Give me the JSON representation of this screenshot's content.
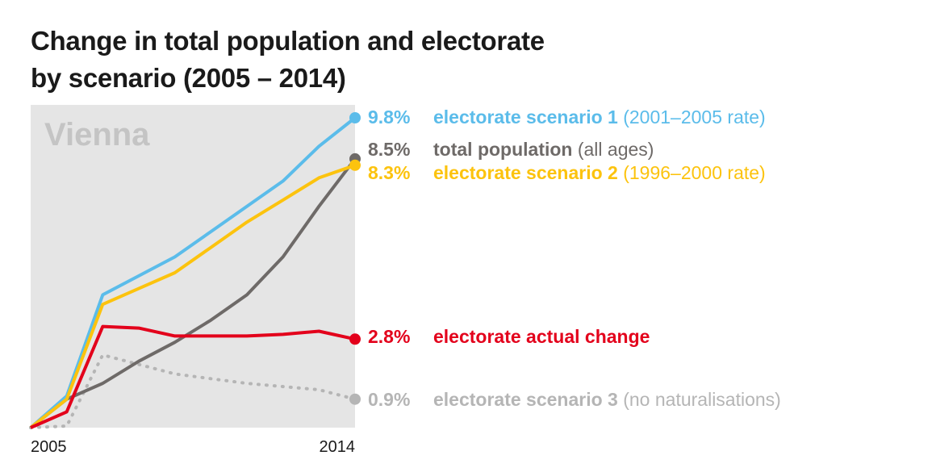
{
  "title": "Change in total population and electorate\nby scenario (2005 – 2014)",
  "chart_data": {
    "type": "line",
    "panel_label": "Vienna",
    "x": [
      2005,
      2006,
      2007,
      2008,
      2009,
      2010,
      2011,
      2012,
      2013,
      2014
    ],
    "x_tick_labels": [
      "2005",
      "2014"
    ],
    "ylim": [
      0,
      9.8
    ],
    "grid": false,
    "legend_placement": "right (direct labels at line ends)",
    "series": [
      {
        "key": "pop",
        "color": "#6e6a68",
        "dashed": false,
        "values": [
          0,
          0.9,
          1.4,
          2.1,
          2.7,
          3.4,
          4.2,
          5.4,
          7.0,
          8.5
        ],
        "value_label": "8.5%",
        "name_bold": "total population",
        "name_extra": " (all ages)"
      },
      {
        "key": "s1",
        "color": "#5bbcea",
        "dashed": false,
        "values": [
          0,
          1.0,
          4.2,
          4.8,
          5.4,
          6.2,
          7.0,
          7.8,
          8.9,
          9.8
        ],
        "value_label": "9.8%",
        "name_bold": "electorate scenario 1",
        "name_extra": " (2001–2005 rate)"
      },
      {
        "key": "s2",
        "color": "#fcc30e",
        "dashed": false,
        "values": [
          0,
          0.9,
          3.9,
          4.4,
          4.9,
          5.7,
          6.5,
          7.2,
          7.9,
          8.3
        ],
        "value_label": "8.3%",
        "name_bold": "electorate scenario 2",
        "name_extra": " (1996–2000 rate)"
      },
      {
        "key": "actual",
        "color": "#e3001b",
        "dashed": false,
        "values": [
          0,
          0.5,
          3.2,
          3.15,
          2.9,
          2.9,
          2.9,
          2.95,
          3.05,
          2.8
        ],
        "value_label": "2.8%",
        "name_bold": "electorate actual change",
        "name_extra": ""
      },
      {
        "key": "s3",
        "color": "#b5b5b5",
        "dashed": true,
        "values": [
          0,
          0.05,
          2.3,
          2.0,
          1.7,
          1.55,
          1.4,
          1.3,
          1.2,
          0.9
        ],
        "value_label": "0.9%",
        "name_bold": "electorate scenario 3",
        "name_extra": " (no naturalisations)"
      }
    ]
  }
}
